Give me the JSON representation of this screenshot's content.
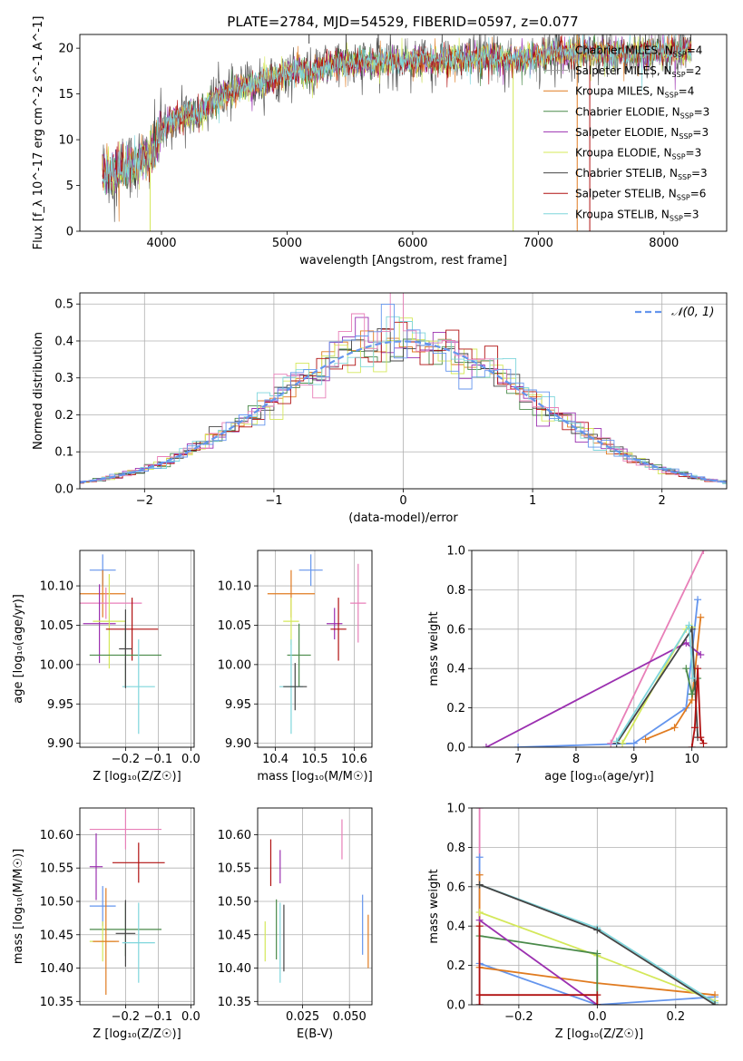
{
  "title": "PLATE=2784, MJD=54529, FIBERID=0597, z=0.077",
  "colors": {
    "chabrier_miles": "#6495ed",
    "salpeter_miles": "#9b9b9b",
    "kroupa_miles": "#e07b20",
    "chabrier_elodie": "#4a8a4a",
    "salpeter_elodie": "#9b30b0",
    "kroupa_elodie": "#d4e85a",
    "chabrier_stelib": "#444444",
    "salpeter_stelib": "#b01010",
    "kroupa_stelib": "#7fd6dc",
    "pink": "#e87fb8",
    "normal": "#6495ed"
  },
  "chart_data": [
    {
      "id": "spectrum",
      "type": "line",
      "xlabel": "wavelength [Angstrom, rest frame]",
      "ylabel": "Flux [f_λ 10^-17 erg cm^-2 s^-1 A^-1]",
      "xlim": [
        3350,
        8500
      ],
      "ylim": [
        0,
        21.5
      ],
      "xticks": [
        4000,
        5000,
        6000,
        7000,
        8000
      ],
      "yticks": [
        0,
        5,
        10,
        15,
        20
      ],
      "grid": false,
      "legend_position": "top-right",
      "legend": [
        {
          "label": "Chabrier MILES, N",
          "sub": "SSP",
          "suffix": "=4",
          "color_key": "salpeter_miles"
        },
        {
          "label": "Salpeter MILES, N",
          "sub": "SSP",
          "suffix": "=2",
          "color_key": "salpeter_miles"
        },
        {
          "label": "Kroupa MILES, N",
          "sub": "SSP",
          "suffix": "=4",
          "color_key": "kroupa_miles"
        },
        {
          "label": "Chabrier ELODIE, N",
          "sub": "SSP",
          "suffix": "=3",
          "color_key": "chabrier_elodie"
        },
        {
          "label": "Salpeter ELODIE, N",
          "sub": "SSP",
          "suffix": "=3",
          "color_key": "salpeter_elodie"
        },
        {
          "label": "Kroupa ELODIE, N",
          "sub": "SSP",
          "suffix": "=3",
          "color_key": "kroupa_elodie"
        },
        {
          "label": "Chabrier STELIB, N",
          "sub": "SSP",
          "suffix": "=3",
          "color_key": "chabrier_stelib"
        },
        {
          "label": "Salpeter STELIB, N",
          "sub": "SSP",
          "suffix": "=6",
          "color_key": "salpeter_stelib"
        },
        {
          "label": "Kroupa STELIB, N",
          "sub": "SSP",
          "suffix": "=3",
          "color_key": "kroupa_stelib"
        }
      ],
      "continuum": [
        [
          3530,
          6.6
        ],
        [
          3600,
          6.3
        ],
        [
          3700,
          7.0
        ],
        [
          3800,
          7.4
        ],
        [
          3900,
          8.2
        ],
        [
          3950,
          9.0
        ],
        [
          4000,
          11.0
        ],
        [
          4100,
          12.3
        ],
        [
          4200,
          12.9
        ],
        [
          4300,
          12.7
        ],
        [
          4400,
          14.2
        ],
        [
          4500,
          15.0
        ],
        [
          4600,
          15.6
        ],
        [
          4700,
          15.9
        ],
        [
          4800,
          16.3
        ],
        [
          4900,
          16.8
        ],
        [
          5000,
          17.3
        ],
        [
          5100,
          17.6
        ],
        [
          5200,
          17.1
        ],
        [
          5300,
          18.1
        ],
        [
          5400,
          18.4
        ],
        [
          5500,
          18.3
        ],
        [
          5600,
          18.6
        ],
        [
          5700,
          18.4
        ],
        [
          5800,
          18.7
        ],
        [
          5900,
          18.6
        ],
        [
          6000,
          18.8
        ],
        [
          6100,
          18.8
        ],
        [
          6200,
          18.5
        ],
        [
          6300,
          18.9
        ],
        [
          6400,
          18.8
        ],
        [
          6500,
          18.9
        ],
        [
          6600,
          19.0
        ],
        [
          6700,
          18.8
        ],
        [
          6800,
          18.9
        ],
        [
          6900,
          18.9
        ],
        [
          7000,
          19.2
        ],
        [
          7100,
          19.5
        ],
        [
          7200,
          19.5
        ],
        [
          7300,
          19.6
        ],
        [
          7400,
          19.6
        ],
        [
          7500,
          19.5
        ],
        [
          7600,
          19.4
        ],
        [
          7700,
          19.6
        ],
        [
          7800,
          19.5
        ],
        [
          7900,
          19.7
        ],
        [
          8000,
          19.6
        ],
        [
          8100,
          19.7
        ],
        [
          8220,
          19.8
        ]
      ],
      "spikes": [
        {
          "x": 3910,
          "y0": 0,
          "y1": 11,
          "color_key": "kroupa_elodie"
        },
        {
          "x": 5175,
          "y0": 20.5,
          "y1": 22,
          "color_key": "chabrier_stelib"
        },
        {
          "x": 6800,
          "y0": 0,
          "y1": 18.5,
          "color_key": "kroupa_elodie"
        },
        {
          "x": 7050,
          "y0": 20,
          "y1": 22,
          "color_key": "salpeter_miles"
        },
        {
          "x": 7310,
          "y0": 0,
          "y1": 21.5,
          "color_key": "kroupa_miles"
        },
        {
          "x": 7410,
          "y0": 0,
          "y1": 19.2,
          "color_key": "salpeter_stelib"
        }
      ]
    },
    {
      "id": "residuals",
      "type": "line",
      "xlabel": "(data-model)/error",
      "ylabel": "Normed distribution",
      "xlim": [
        -2.5,
        2.5
      ],
      "ylim": [
        0,
        0.53
      ],
      "xticks": [
        -2,
        -1,
        0,
        1,
        2
      ],
      "yticks": [
        0.0,
        0.1,
        0.2,
        0.3,
        0.4,
        0.5
      ],
      "grid": true,
      "legend_position": "top-right",
      "legend_label": "𝒩(0, 1)",
      "normal": {
        "mu": 0,
        "sigma": 1
      }
    },
    {
      "id": "age_vs_Z",
      "type": "scatter",
      "xlabel": "Z [log₁₀(Z/Z☉)]",
      "ylabel": "age  [log₁₀(age/yr)]",
      "xlim": [
        -0.34,
        0.01
      ],
      "ylim": [
        9.895,
        10.145
      ],
      "xticks": [
        -0.2,
        -0.1,
        0.0
      ],
      "yticks": [
        9.9,
        9.95,
        10.0,
        10.05,
        10.1
      ],
      "grid": true,
      "points": [
        {
          "c": "chabrier_miles",
          "x": -0.27,
          "y": 10.12,
          "xerr": 0.04,
          "yerr": 0.02
        },
        {
          "c": "kroupa_miles",
          "x": -0.27,
          "y": 10.09,
          "xerr": 0.07,
          "yerr": 0.03
        },
        {
          "c": "pink",
          "x": -0.26,
          "y": 10.078,
          "xerr": 0.11,
          "yerr": 0.02
        },
        {
          "c": "salpeter_elodie",
          "x": -0.28,
          "y": 10.052,
          "xerr": 0.05,
          "yerr": 0.05
        },
        {
          "c": "kroupa_elodie",
          "x": -0.25,
          "y": 10.055,
          "xerr": 0.05,
          "yerr": 0.06
        },
        {
          "c": "salpeter_stelib",
          "x": -0.18,
          "y": 10.045,
          "xerr": 0.08,
          "yerr": 0.04
        },
        {
          "c": "chabrier_elodie",
          "x": -0.2,
          "y": 10.012,
          "xerr": 0.11,
          "yerr": 0.04
        },
        {
          "c": "kroupa_stelib",
          "x": -0.16,
          "y": 9.972,
          "xerr": 0.05,
          "yerr": 0.06
        },
        {
          "c": "chabrier_stelib",
          "x": -0.2,
          "y": 10.02,
          "xerr": 0.02,
          "yerr": 0.05
        }
      ]
    },
    {
      "id": "age_vs_mass",
      "type": "scatter",
      "xlabel": "mass [log₁₀(M/M☉)]",
      "ylabel": "",
      "xlim": [
        10.355,
        10.645
      ],
      "ylim": [
        9.895,
        10.145
      ],
      "xticks": [
        10.4,
        10.5,
        10.6
      ],
      "yticks": [
        9.9,
        9.95,
        10.0,
        10.05,
        10.1
      ],
      "grid": true,
      "points": [
        {
          "c": "chabrier_miles",
          "x": 10.49,
          "y": 10.12,
          "xerr": 0.03,
          "yerr": 0.02
        },
        {
          "c": "kroupa_miles",
          "x": 10.44,
          "y": 10.09,
          "xerr": 0.06,
          "yerr": 0.03
        },
        {
          "c": "pink",
          "x": 10.61,
          "y": 10.078,
          "xerr": 0.02,
          "yerr": 0.05
        },
        {
          "c": "salpeter_elodie",
          "x": 10.55,
          "y": 10.052,
          "xerr": 0.02,
          "yerr": 0.02
        },
        {
          "c": "kroupa_elodie",
          "x": 10.44,
          "y": 10.055,
          "xerr": 0.02,
          "yerr": 0.03
        },
        {
          "c": "salpeter_stelib",
          "x": 10.56,
          "y": 10.045,
          "xerr": 0.02,
          "yerr": 0.04
        },
        {
          "c": "chabrier_elodie",
          "x": 10.46,
          "y": 10.012,
          "xerr": 0.03,
          "yerr": 0.04
        },
        {
          "c": "kroupa_stelib",
          "x": 10.44,
          "y": 9.972,
          "xerr": 0.03,
          "yerr": 0.06
        },
        {
          "c": "chabrier_stelib",
          "x": 10.45,
          "y": 9.972,
          "xerr": 0.03,
          "yerr": 0.03
        }
      ]
    },
    {
      "id": "weight_vs_age",
      "type": "line",
      "xlabel": "age  [log₁₀(age/yr)]",
      "ylabel": "mass weight",
      "xlim": [
        6.2,
        10.6
      ],
      "ylim": [
        0,
        1.0
      ],
      "xticks": [
        7,
        8,
        9,
        10
      ],
      "yticks": [
        0.0,
        0.2,
        0.4,
        0.6,
        0.8,
        1.0
      ],
      "grid": true,
      "series": [
        {
          "c": "chabrier_miles",
          "points": [
            [
              7.0,
              0.0
            ],
            [
              9.0,
              0.02
            ],
            [
              9.9,
              0.2
            ],
            [
              10.1,
              0.75
            ]
          ]
        },
        {
          "c": "kroupa_miles",
          "points": [
            [
              9.2,
              0.04
            ],
            [
              9.7,
              0.1
            ],
            [
              10.0,
              0.24
            ],
            [
              10.15,
              0.66
            ]
          ]
        },
        {
          "c": "pink",
          "points": [
            [
              8.6,
              0.02
            ],
            [
              10.2,
              1.0
            ]
          ]
        },
        {
          "c": "salpeter_elodie",
          "points": [
            [
              6.45,
              0.0
            ],
            [
              9.9,
              0.53
            ],
            [
              10.15,
              0.47
            ]
          ]
        },
        {
          "c": "kroupa_elodie",
          "points": [
            [
              8.8,
              0.02
            ],
            [
              9.9,
              0.6
            ],
            [
              10.0,
              0.61
            ]
          ]
        },
        {
          "c": "chabrier_elodie",
          "points": [
            [
              9.9,
              0.4
            ],
            [
              10.0,
              0.27
            ],
            [
              10.1,
              0.35
            ]
          ]
        },
        {
          "c": "chabrier_stelib",
          "points": [
            [
              8.7,
              0.02
            ],
            [
              10.0,
              0.6
            ],
            [
              10.1,
              0.05
            ]
          ]
        },
        {
          "c": "salpeter_stelib",
          "points": [
            [
              10.0,
              0.0
            ],
            [
              10.05,
              0.1
            ],
            [
              10.1,
              0.4
            ],
            [
              10.15,
              0.05
            ],
            [
              10.2,
              0.02
            ]
          ]
        },
        {
          "c": "kroupa_stelib",
          "points": [
            [
              8.7,
              0.03
            ],
            [
              9.95,
              0.62
            ],
            [
              10.02,
              0.35
            ]
          ]
        }
      ]
    },
    {
      "id": "mass_vs_Z",
      "type": "scatter",
      "xlabel": "Z [log₁₀(Z/Z☉)]",
      "ylabel": "mass [log₁₀(M/M☉)]",
      "xlim": [
        -0.34,
        0.01
      ],
      "ylim": [
        10.345,
        10.64
      ],
      "xticks": [
        -0.2,
        -0.1,
        0.0
      ],
      "yticks": [
        10.35,
        10.4,
        10.45,
        10.5,
        10.55,
        10.6
      ],
      "grid": true,
      "points": [
        {
          "c": "pink",
          "x": -0.2,
          "y": 10.608,
          "xerr": 0.11,
          "yerr": 0.03
        },
        {
          "c": "salpeter_stelib",
          "x": -0.16,
          "y": 10.558,
          "xerr": 0.08,
          "yerr": 0.03
        },
        {
          "c": "salpeter_elodie",
          "x": -0.29,
          "y": 10.552,
          "xerr": 0.02,
          "yerr": 0.05
        },
        {
          "c": "chabrier_miles",
          "x": -0.27,
          "y": 10.493,
          "xerr": 0.04,
          "yerr": 0.03
        },
        {
          "c": "chabrier_elodie",
          "x": -0.2,
          "y": 10.458,
          "xerr": 0.11,
          "yerr": 0.04
        },
        {
          "c": "chabrier_stelib",
          "x": -0.2,
          "y": 10.452,
          "xerr": 0.03,
          "yerr": 0.05
        },
        {
          "c": "kroupa_elodie",
          "x": -0.27,
          "y": 10.44,
          "xerr": 0.04,
          "yerr": 0.03
        },
        {
          "c": "kroupa_miles",
          "x": -0.26,
          "y": 10.44,
          "xerr": 0.04,
          "yerr": 0.08
        },
        {
          "c": "kroupa_stelib",
          "x": -0.16,
          "y": 10.438,
          "xerr": 0.05,
          "yerr": 0.06
        }
      ]
    },
    {
      "id": "mass_vs_EBV",
      "type": "scatter",
      "xlabel": "E(B-V)",
      "ylabel": "",
      "xlim": [
        0.001,
        0.062
      ],
      "ylim": [
        10.345,
        10.64
      ],
      "xticks": [
        0.025,
        0.05
      ],
      "xticklabels": [
        "0.025",
        "0.050"
      ],
      "yticks": [
        10.35,
        10.4,
        10.45,
        10.5,
        10.55,
        10.6
      ],
      "grid": true,
      "points": [
        {
          "c": "pink",
          "x": 0.046,
          "y": 10.593,
          "xerr": 0.0,
          "yerr": 0.03
        },
        {
          "c": "salpeter_stelib",
          "x": 0.008,
          "y": 10.558,
          "xerr": 0.0,
          "yerr": 0.035
        },
        {
          "c": "salpeter_elodie",
          "x": 0.013,
          "y": 10.552,
          "xerr": 0.0,
          "yerr": 0.025
        },
        {
          "c": "chabrier_elodie",
          "x": 0.011,
          "y": 10.458,
          "xerr": 0.0,
          "yerr": 0.045
        },
        {
          "c": "kroupa_elodie",
          "x": 0.005,
          "y": 10.44,
          "xerr": 0.0,
          "yerr": 0.03
        },
        {
          "c": "chabrier_stelib",
          "x": 0.015,
          "y": 10.445,
          "xerr": 0.0,
          "yerr": 0.05
        },
        {
          "c": "kroupa_stelib",
          "x": 0.013,
          "y": 10.438,
          "xerr": 0.0,
          "yerr": 0.06
        },
        {
          "c": "chabrier_miles",
          "x": 0.057,
          "y": 10.465,
          "xerr": 0.0,
          "yerr": 0.045
        },
        {
          "c": "kroupa_miles",
          "x": 0.06,
          "y": 10.44,
          "xerr": 0.0,
          "yerr": 0.04
        }
      ]
    },
    {
      "id": "weight_vs_Z",
      "type": "line",
      "xlabel": "Z [log₁₀(Z/Z☉)]",
      "ylabel": "mass weight",
      "xlim": [
        -0.32,
        0.33
      ],
      "ylim": [
        0,
        1.0
      ],
      "xticks": [
        -0.2,
        0.0,
        0.2
      ],
      "yticks": [
        0.0,
        0.2,
        0.4,
        0.6,
        0.8,
        1.0
      ],
      "grid": true,
      "series": [
        {
          "c": "pink",
          "points": [
            [
              -0.3,
              0.0
            ],
            [
              -0.3,
              1.0
            ]
          ]
        },
        {
          "c": "chabrier_miles",
          "points": [
            [
              -0.3,
              0.75
            ],
            [
              -0.3,
              0.21
            ],
            [
              0.0,
              0.0
            ],
            [
              0.3,
              0.04
            ]
          ]
        },
        {
          "c": "kroupa_miles",
          "points": [
            [
              -0.3,
              0.66
            ],
            [
              -0.3,
              0.19
            ],
            [
              0.0,
              0.11
            ],
            [
              0.3,
              0.05
            ]
          ]
        },
        {
          "c": "kroupa_elodie",
          "points": [
            [
              -0.3,
              0.47
            ],
            [
              0.0,
              0.25
            ],
            [
              0.3,
              0.02
            ]
          ]
        },
        {
          "c": "chabrier_elodie",
          "points": [
            [
              -0.3,
              0.35
            ],
            [
              0.0,
              0.26
            ],
            [
              0.0,
              0.0
            ]
          ]
        },
        {
          "c": "salpeter_elodie",
          "points": [
            [
              -0.3,
              0.43
            ],
            [
              0.0,
              0.0
            ]
          ]
        },
        {
          "c": "kroupa_stelib",
          "points": [
            [
              -0.3,
              0.61
            ],
            [
              0.0,
              0.39
            ],
            [
              0.3,
              0.01
            ]
          ]
        },
        {
          "c": "chabrier_stelib",
          "points": [
            [
              -0.3,
              0.61
            ],
            [
              0.0,
              0.38
            ],
            [
              0.3,
              0.0
            ]
          ]
        },
        {
          "c": "salpeter_stelib",
          "points": [
            [
              -0.3,
              0.0
            ],
            [
              -0.3,
              0.4
            ],
            [
              -0.3,
              0.05
            ],
            [
              0.0,
              0.05
            ],
            [
              0.0,
              0.0
            ]
          ]
        }
      ]
    }
  ]
}
